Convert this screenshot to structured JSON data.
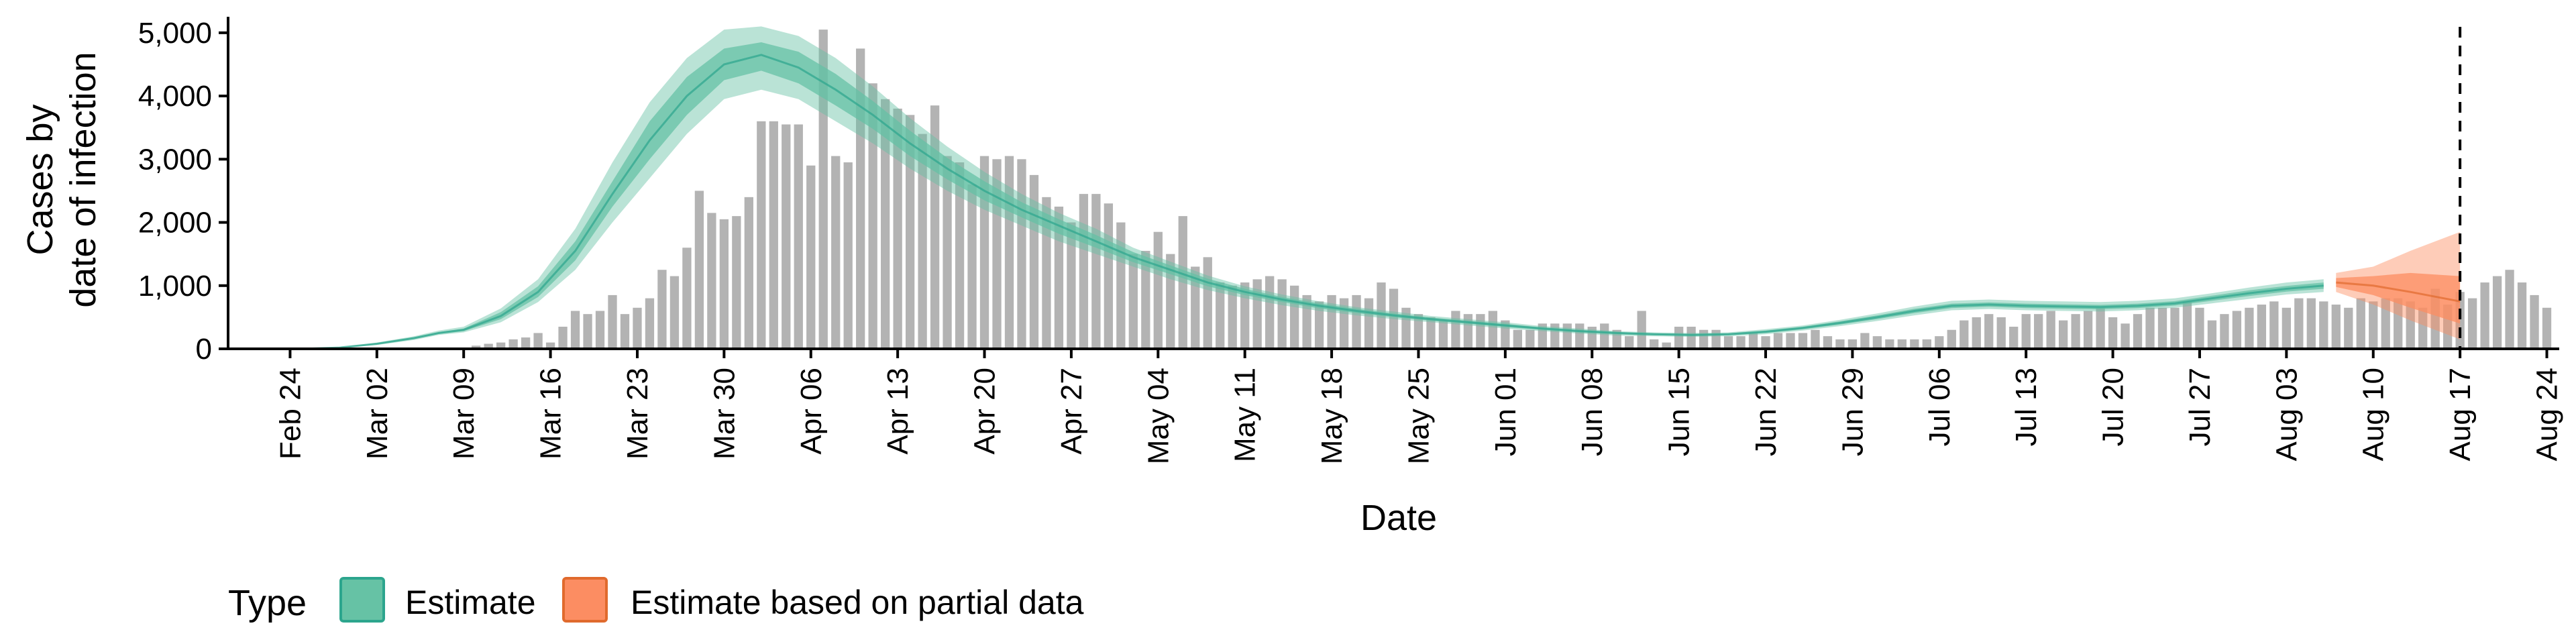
{
  "chart_data": {
    "type": "bar",
    "xlabel": "Date",
    "ylabel_line1": "Cases by",
    "ylabel_line2": "date of infection",
    "ylim": [
      0,
      5200
    ],
    "xlim": [
      "2020-02-19",
      "2020-08-25"
    ],
    "y_ticks": [
      0,
      1000,
      2000,
      3000,
      4000,
      5000
    ],
    "y_tick_labels": [
      "0",
      "1,000",
      "2,000",
      "3,000",
      "4,000",
      "5,000"
    ],
    "x_ticks": [
      "2020-02-24",
      "2020-03-02",
      "2020-03-09",
      "2020-03-16",
      "2020-03-23",
      "2020-03-30",
      "2020-04-06",
      "2020-04-13",
      "2020-04-20",
      "2020-04-27",
      "2020-05-04",
      "2020-05-11",
      "2020-05-18",
      "2020-05-25",
      "2020-06-01",
      "2020-06-08",
      "2020-06-15",
      "2020-06-22",
      "2020-06-29",
      "2020-07-06",
      "2020-07-13",
      "2020-07-20",
      "2020-07-27",
      "2020-08-03",
      "2020-08-10",
      "2020-08-17",
      "2020-08-24"
    ],
    "x_tick_labels": [
      "Feb 24",
      "Mar 02",
      "Mar 09",
      "Mar 16",
      "Mar 23",
      "Mar 30",
      "Apr 06",
      "Apr 13",
      "Apr 20",
      "Apr 27",
      "May 04",
      "May 11",
      "May 18",
      "May 25",
      "Jun 01",
      "Jun 08",
      "Jun 15",
      "Jun 22",
      "Jun 29",
      "Jul 06",
      "Jul 13",
      "Jul 20",
      "Jul 27",
      "Aug 03",
      "Aug 10",
      "Aug 17",
      "Aug 24"
    ],
    "vline_date": "2020-08-17",
    "reported_cases": {
      "start": "2020-03-10",
      "values": [
        50,
        80,
        100,
        150,
        180,
        250,
        100,
        350,
        600,
        550,
        600,
        850,
        550,
        650,
        800,
        1250,
        1150,
        1600,
        2500,
        2150,
        2050,
        2100,
        2400,
        3600,
        3600,
        3550,
        3550,
        2900,
        5050,
        3050,
        2950,
        4750,
        4200,
        3950,
        3800,
        3700,
        3400,
        3850,
        3050,
        2950,
        2600,
        3050,
        3000,
        3050,
        3000,
        2750,
        2400,
        2250,
        2000,
        2450,
        2450,
        2300,
        2000,
        1500,
        1550,
        1850,
        1500,
        2100,
        1300,
        1450,
        1050,
        1000,
        1050,
        1100,
        1150,
        1100,
        1000,
        850,
        750,
        850,
        800,
        850,
        800,
        1050,
        950,
        650,
        550,
        500,
        450,
        600,
        550,
        550,
        600,
        450,
        300,
        300,
        400,
        400,
        400,
        400,
        350,
        400,
        300,
        200,
        600,
        150,
        100,
        350,
        350,
        300,
        300,
        200,
        200,
        250,
        200,
        250,
        250,
        250,
        300,
        200,
        150,
        150,
        250,
        200,
        150,
        150,
        150,
        150,
        200,
        300,
        450,
        500,
        550,
        500,
        350,
        550,
        550,
        600,
        450,
        550,
        600,
        650,
        500,
        400,
        550,
        650,
        650,
        650,
        750,
        650,
        450,
        550,
        600,
        650,
        700,
        750,
        650,
        800,
        800,
        750,
        700,
        650,
        800,
        750,
        800,
        800,
        750,
        650,
        950,
        700,
        900,
        800,
        1050,
        1150,
        1250,
        1050,
        850,
        650
      ]
    },
    "series": [
      {
        "name": "Estimate",
        "color": "#66c2a5",
        "x": [
          "2020-02-25",
          "2020-02-28",
          "2020-03-02",
          "2020-03-05",
          "2020-03-07",
          "2020-03-09",
          "2020-03-12",
          "2020-03-15",
          "2020-03-18",
          "2020-03-21",
          "2020-03-24",
          "2020-03-27",
          "2020-03-30",
          "2020-04-02",
          "2020-04-05",
          "2020-04-08",
          "2020-04-11",
          "2020-04-14",
          "2020-04-17",
          "2020-04-20",
          "2020-04-23",
          "2020-04-26",
          "2020-04-29",
          "2020-05-02",
          "2020-05-05",
          "2020-05-08",
          "2020-05-11",
          "2020-05-14",
          "2020-05-17",
          "2020-05-20",
          "2020-05-23",
          "2020-05-26",
          "2020-05-29",
          "2020-06-01",
          "2020-06-04",
          "2020-06-07",
          "2020-06-10",
          "2020-06-13",
          "2020-06-16",
          "2020-06-19",
          "2020-06-22",
          "2020-06-25",
          "2020-06-28",
          "2020-07-01",
          "2020-07-04",
          "2020-07-07",
          "2020-07-10",
          "2020-07-13",
          "2020-07-16",
          "2020-07-19",
          "2020-07-22",
          "2020-07-25",
          "2020-07-28",
          "2020-07-31",
          "2020-08-03",
          "2020-08-06"
        ],
        "median": [
          0,
          20,
          80,
          170,
          250,
          300,
          520,
          900,
          1550,
          2450,
          3300,
          4000,
          4500,
          4650,
          4450,
          4100,
          3700,
          3250,
          2850,
          2500,
          2200,
          1950,
          1700,
          1450,
          1250,
          1050,
          900,
          780,
          680,
          600,
          530,
          470,
          420,
          370,
          320,
          280,
          250,
          230,
          220,
          230,
          270,
          330,
          410,
          500,
          600,
          680,
          700,
          680,
          670,
          660,
          680,
          720,
          800,
          880,
          950,
          1000
        ],
        "lower90": [
          0,
          15,
          60,
          140,
          220,
          260,
          420,
          740,
          1250,
          2000,
          2700,
          3400,
          3950,
          4100,
          3950,
          3600,
          3250,
          2850,
          2500,
          2200,
          1950,
          1700,
          1500,
          1300,
          1100,
          930,
          800,
          690,
          600,
          530,
          470,
          420,
          370,
          320,
          280,
          240,
          210,
          200,
          190,
          200,
          230,
          290,
          360,
          440,
          530,
          610,
          630,
          610,
          600,
          590,
          610,
          650,
          720,
          790,
          860,
          900
        ],
        "upper90": [
          0,
          25,
          100,
          200,
          290,
          350,
          640,
          1100,
          1900,
          2950,
          3900,
          4600,
          5050,
          5100,
          4950,
          4600,
          4150,
          3650,
          3200,
          2800,
          2450,
          2150,
          1900,
          1600,
          1380,
          1160,
          990,
          860,
          750,
          660,
          590,
          520,
          470,
          420,
          360,
          320,
          280,
          260,
          250,
          260,
          310,
          370,
          460,
          560,
          670,
          760,
          780,
          760,
          750,
          740,
          760,
          800,
          880,
          970,
          1050,
          1100
        ],
        "lower50": [
          0,
          18,
          70,
          155,
          235,
          280,
          470,
          820,
          1400,
          2250,
          3000,
          3700,
          4250,
          4400,
          4200,
          3850,
          3480,
          3050,
          2680,
          2350,
          2080,
          1820,
          1600,
          1370,
          1180,
          990,
          850,
          740,
          640,
          565,
          500,
          445,
          395,
          345,
          300,
          260,
          230,
          215,
          205,
          215,
          250,
          310,
          385,
          470,
          565,
          645,
          665,
          645,
          635,
          625,
          645,
          685,
          760,
          835,
          905,
          950
        ],
        "upper50": [
          0,
          22,
          90,
          185,
          265,
          320,
          580,
          990,
          1700,
          2650,
          3600,
          4300,
          4750,
          4850,
          4700,
          4350,
          3920,
          3450,
          3020,
          2650,
          2320,
          2050,
          1800,
          1530,
          1320,
          1110,
          950,
          820,
          720,
          635,
          560,
          495,
          445,
          395,
          340,
          300,
          265,
          245,
          235,
          245,
          290,
          350,
          435,
          530,
          635,
          715,
          735,
          715,
          705,
          695,
          715,
          755,
          840,
          925,
          995,
          1050
        ]
      },
      {
        "name": "Estimate based on partial data",
        "color": "#fc8d62",
        "x": [
          "2020-08-07",
          "2020-08-10",
          "2020-08-13",
          "2020-08-17"
        ],
        "median": [
          1050,
          1000,
          900,
          750
        ],
        "lower90": [
          900,
          700,
          450,
          150
        ],
        "upper90": [
          1200,
          1300,
          1550,
          1850
        ],
        "lower50": [
          980,
          850,
          650,
          400
        ],
        "upper50": [
          1120,
          1150,
          1200,
          1150
        ]
      }
    ],
    "legend": {
      "title": "Type",
      "placement": "bottom-left",
      "items": [
        "Estimate",
        "Estimate based on partial data"
      ]
    }
  },
  "colors": {
    "estimate_band": "#66c2a5",
    "estimate_median": "#2ca58d",
    "partial_band": "#fc8d62",
    "partial_median": "#e06a2d",
    "bars": "#b3b3b3"
  }
}
